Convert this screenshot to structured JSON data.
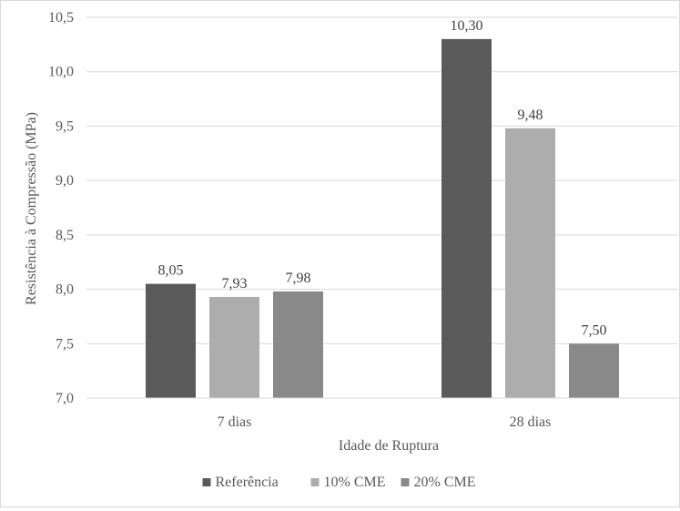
{
  "chart_data": {
    "type": "bar",
    "categories": [
      "7 dias",
      "28 dias"
    ],
    "series": [
      {
        "name": "Referência",
        "values": [
          8.05,
          10.3
        ],
        "labels": [
          "8,05",
          "10,30"
        ],
        "color": "#5a5a5a"
      },
      {
        "name": "10% CME",
        "values": [
          7.93,
          9.48
        ],
        "labels": [
          "7,93",
          "9,48"
        ],
        "color": "#adadad"
      },
      {
        "name": "20% CME",
        "values": [
          7.98,
          7.5
        ],
        "labels": [
          "7,98",
          "7,50"
        ],
        "color": "#898989"
      }
    ],
    "xlabel": "Idade de Ruptura",
    "ylabel": "Resistência à Compressão (MPa)",
    "ylim": [
      7.0,
      10.5
    ],
    "yticks": [
      7.0,
      7.5,
      8.0,
      8.5,
      9.0,
      9.5,
      10.0,
      10.5
    ],
    "ytick_labels": [
      "7,0",
      "7,5",
      "8,0",
      "8,5",
      "9,0",
      "9,5",
      "10,0",
      "10,5"
    ],
    "grid": true,
    "legend_position": "bottom"
  }
}
